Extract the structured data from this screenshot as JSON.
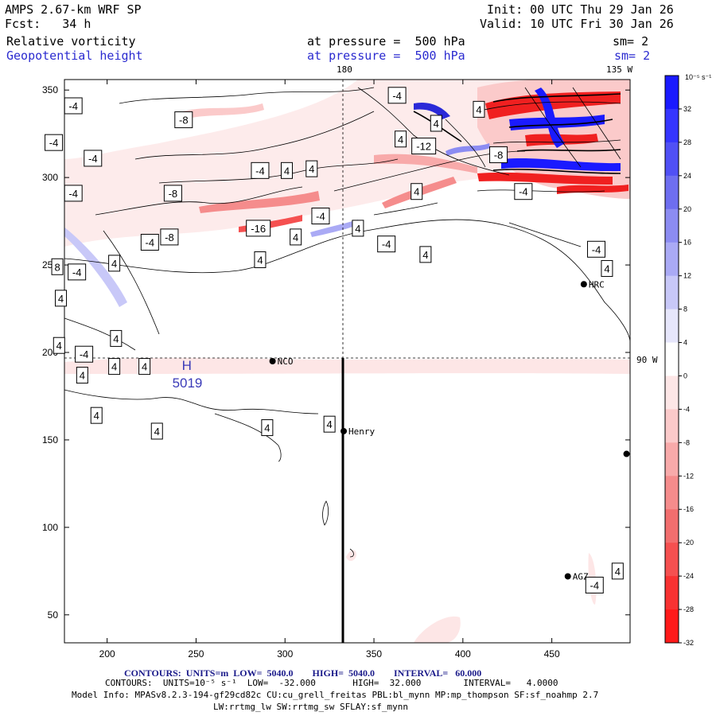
{
  "header": {
    "model": "AMPS 2.67-km WRF SP",
    "fcst": "Fcst:   34 h",
    "init": "Init: 00 UTC Thu 29 Jan 26",
    "valid": "Valid: 10 UTC Fri 30 Jan 26",
    "field1": "Relative vorticity",
    "field1_level": "at pressure =  500 hPa",
    "field1_sm": "sm= 2",
    "field2": "Geopotential height",
    "field2_level": "at pressure =  500 hPa",
    "field2_sm": "sm= 2"
  },
  "chart_data": {
    "type": "heatmap",
    "title": "Relative vorticity and Geopotential height at 500 hPa",
    "x_ticks": [
      200,
      250,
      300,
      350,
      400,
      450
    ],
    "y_ticks": [
      50,
      100,
      150,
      200,
      250,
      300,
      350
    ],
    "xlim": [
      176,
      494
    ],
    "ylim": [
      34,
      356
    ],
    "meridian_labels": {
      "top_180": "180",
      "top_135w": "135 W",
      "right_90w": "90 W"
    },
    "colorbar": {
      "unit_label": "10⁻⁵ s⁻¹",
      "ticks": [
        32,
        28,
        24,
        20,
        16,
        12,
        8,
        4,
        0,
        -4,
        -8,
        -12,
        -16,
        -20,
        -24,
        -28,
        -32
      ],
      "colors": [
        "#1a1aff",
        "#3535ff",
        "#5050f5",
        "#6e6ef0",
        "#8c8cf2",
        "#aaaaf5",
        "#c8c8f8",
        "#e6e6fb",
        "#ffffff",
        "#fde6e6",
        "#fbcaca",
        "#f8aaaa",
        "#f58c8c",
        "#f26e6e",
        "#f55050",
        "#f83232",
        "#ff1a1a"
      ]
    },
    "stations": [
      {
        "name": "NCO",
        "x": 293,
        "y": 195
      },
      {
        "name": "Henry",
        "x": 333,
        "y": 155
      },
      {
        "name": "HRC",
        "x": 468,
        "y": 239
      },
      {
        "name": "AGZ",
        "x": 459,
        "y": 72
      },
      {
        "name": "",
        "x": 492,
        "y": 142
      }
    ],
    "pole_marker": {
      "letter": "H",
      "value": "5019",
      "x": 242,
      "y": 190
    },
    "contour_labels": [
      {
        "text": "-4",
        "x": 181,
        "y": 341
      },
      {
        "text": "-8",
        "x": 243,
        "y": 333
      },
      {
        "text": "-4",
        "x": 170,
        "y": 320
      },
      {
        "text": "-4",
        "x": 192,
        "y": 311
      },
      {
        "text": "-4",
        "x": 181,
        "y": 291
      },
      {
        "text": "-8",
        "x": 237,
        "y": 291
      },
      {
        "text": "-4",
        "x": 286,
        "y": 304
      },
      {
        "text": "4",
        "x": 301,
        "y": 304
      },
      {
        "text": "4",
        "x": 315,
        "y": 305
      },
      {
        "text": "-16",
        "x": 285,
        "y": 271
      },
      {
        "text": "4",
        "x": 306,
        "y": 266
      },
      {
        "text": "-4",
        "x": 320,
        "y": 278
      },
      {
        "text": "4",
        "x": 341,
        "y": 271
      },
      {
        "text": "-4",
        "x": 224,
        "y": 263
      },
      {
        "text": "-8",
        "x": 235,
        "y": 266
      },
      {
        "text": "4",
        "x": 204,
        "y": 251
      },
      {
        "text": "4",
        "x": 286,
        "y": 253
      },
      {
        "text": "-4",
        "x": 357,
        "y": 262
      },
      {
        "text": "4",
        "x": 379,
        "y": 256
      },
      {
        "text": "8",
        "x": 172,
        "y": 249
      },
      {
        "text": "-4",
        "x": 183,
        "y": 246
      },
      {
        "text": "4",
        "x": 174,
        "y": 231
      },
      {
        "text": "4",
        "x": 205,
        "y": 208
      },
      {
        "text": "4",
        "x": 173,
        "y": 204
      },
      {
        "text": "-4",
        "x": 187,
        "y": 199
      },
      {
        "text": "4",
        "x": 204,
        "y": 192
      },
      {
        "text": "4",
        "x": 221,
        "y": 192
      },
      {
        "text": "4",
        "x": 186,
        "y": 187
      },
      {
        "text": "4",
        "x": 194,
        "y": 164
      },
      {
        "text": "4",
        "x": 228,
        "y": 155
      },
      {
        "text": "4",
        "x": 290,
        "y": 157
      },
      {
        "text": "4",
        "x": 325,
        "y": 159
      },
      {
        "text": "-4",
        "x": 363,
        "y": 347
      },
      {
        "text": "4",
        "x": 365,
        "y": 322
      },
      {
        "text": "-12",
        "x": 378,
        "y": 318
      },
      {
        "text": "4",
        "x": 374,
        "y": 292
      },
      {
        "text": "-8",
        "x": 420,
        "y": 313
      },
      {
        "text": "-4",
        "x": 434,
        "y": 292
      },
      {
        "text": "4",
        "x": 385,
        "y": 331
      },
      {
        "text": "4",
        "x": 409,
        "y": 339
      },
      {
        "text": "-4",
        "x": 475,
        "y": 259
      },
      {
        "text": "4",
        "x": 481,
        "y": 248
      },
      {
        "text": "4",
        "x": 487,
        "y": 75
      },
      {
        "text": "-4",
        "x": 474,
        "y": 67
      }
    ]
  },
  "footer": {
    "line1_prefix": "CONTOURS:  UNITS=m  LOW=  5040.0        HIGH=  5040.0        INTERVAL=   60.000",
    "line2": "CONTOURS:  UNITS=10⁻⁵ s⁻¹  LOW=  -32.000       HIGH=  32.000        INTERVAL=   4.0000",
    "line3": "Model Info: MPASv8.2.3-194-gf29cd82c CU:cu_grell_freitas PBL:bl_mynn MP:mp_thompson SF:sf_noahmp 2.7",
    "line4": "LW:rrtmg_lw SW:rrtmg_sw SFLAY:sf_mynn"
  }
}
